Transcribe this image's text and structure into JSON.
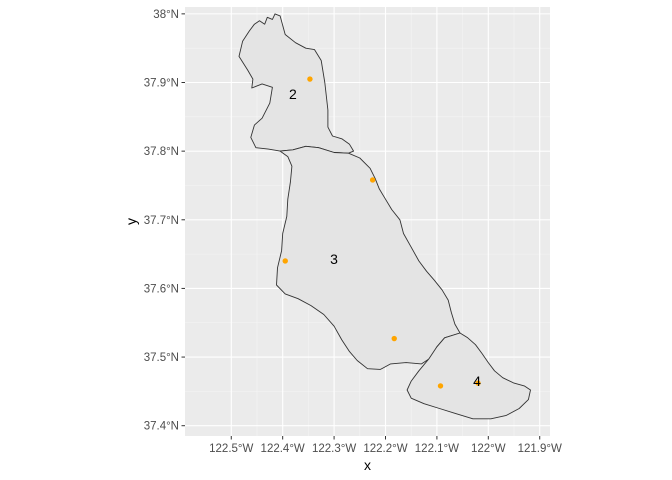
{
  "chart_data": {
    "type": "map",
    "xlabel": "x",
    "ylabel": "y",
    "xlim": [
      -122.59,
      -121.88
    ],
    "ylim": [
      37.385,
      38.01
    ],
    "x_ticks": [
      {
        "value": -122.5,
        "label": "122.5°W"
      },
      {
        "value": -122.4,
        "label": "122.4°W"
      },
      {
        "value": -122.3,
        "label": "122.3°W"
      },
      {
        "value": -122.2,
        "label": "122.2°W"
      },
      {
        "value": -122.1,
        "label": "122.1°W"
      },
      {
        "value": -122.0,
        "label": "122°W"
      },
      {
        "value": -121.9,
        "label": "121.9°W"
      }
    ],
    "y_ticks": [
      {
        "value": 37.4,
        "label": "37.4°N"
      },
      {
        "value": 37.5,
        "label": "37.5°N"
      },
      {
        "value": 37.6,
        "label": "37.6°N"
      },
      {
        "value": 37.7,
        "label": "37.7°N"
      },
      {
        "value": 37.8,
        "label": "37.8°N"
      },
      {
        "value": 37.9,
        "label": "37.9°N"
      },
      {
        "value": 38.0,
        "label": "38°N"
      }
    ],
    "grid": true,
    "region_fill": "#e4e4e4",
    "border_color": "#333333",
    "point_color": "#ffa500",
    "regions": [
      {
        "label": "2",
        "label_at": [
          -122.38,
          37.883
        ],
        "boundary": [
          [
            -122.455,
            37.985
          ],
          [
            -122.445,
            37.99
          ],
          [
            -122.435,
            37.985
          ],
          [
            -122.43,
            37.995
          ],
          [
            -122.42,
            37.992
          ],
          [
            -122.415,
            38.0
          ],
          [
            -122.405,
            37.997
          ],
          [
            -122.395,
            37.97
          ],
          [
            -122.375,
            37.958
          ],
          [
            -122.355,
            37.95
          ],
          [
            -122.338,
            37.948
          ],
          [
            -122.325,
            37.932
          ],
          [
            -122.318,
            37.9
          ],
          [
            -122.312,
            37.86
          ],
          [
            -122.312,
            37.835
          ],
          [
            -122.303,
            37.822
          ],
          [
            -122.285,
            37.818
          ],
          [
            -122.27,
            37.81
          ],
          [
            -122.262,
            37.8
          ],
          [
            -122.272,
            37.797
          ],
          [
            -122.3,
            37.798
          ],
          [
            -122.33,
            37.805
          ],
          [
            -122.355,
            37.807
          ],
          [
            -122.38,
            37.802
          ],
          [
            -122.405,
            37.8
          ],
          [
            -122.428,
            37.803
          ],
          [
            -122.452,
            37.805
          ],
          [
            -122.462,
            37.82
          ],
          [
            -122.455,
            37.838
          ],
          [
            -122.44,
            37.848
          ],
          [
            -122.425,
            37.87
          ],
          [
            -122.42,
            37.893
          ],
          [
            -122.44,
            37.898
          ],
          [
            -122.46,
            37.892
          ],
          [
            -122.458,
            37.905
          ],
          [
            -122.468,
            37.918
          ],
          [
            -122.485,
            37.938
          ],
          [
            -122.478,
            37.96
          ],
          [
            -122.465,
            37.975
          ]
        ]
      },
      {
        "label": "3",
        "label_at": [
          -122.3,
          37.643
        ],
        "boundary": [
          [
            -122.405,
            37.8
          ],
          [
            -122.38,
            37.802
          ],
          [
            -122.355,
            37.807
          ],
          [
            -122.33,
            37.805
          ],
          [
            -122.3,
            37.798
          ],
          [
            -122.272,
            37.797
          ],
          [
            -122.25,
            37.79
          ],
          [
            -122.23,
            37.775
          ],
          [
            -122.22,
            37.76
          ],
          [
            -122.212,
            37.745
          ],
          [
            -122.2,
            37.73
          ],
          [
            -122.188,
            37.715
          ],
          [
            -122.172,
            37.7
          ],
          [
            -122.165,
            37.68
          ],
          [
            -122.15,
            37.66
          ],
          [
            -122.135,
            37.64
          ],
          [
            -122.12,
            37.625
          ],
          [
            -122.105,
            37.612
          ],
          [
            -122.09,
            37.598
          ],
          [
            -122.078,
            37.583
          ],
          [
            -122.072,
            37.565
          ],
          [
            -122.065,
            37.548
          ],
          [
            -122.055,
            37.535
          ],
          [
            -122.085,
            37.528
          ],
          [
            -122.1,
            37.515
          ],
          [
            -122.11,
            37.5
          ],
          [
            -122.13,
            37.49
          ],
          [
            -122.16,
            37.492
          ],
          [
            -122.19,
            37.49
          ],
          [
            -122.21,
            37.482
          ],
          [
            -122.235,
            37.483
          ],
          [
            -122.255,
            37.495
          ],
          [
            -122.27,
            37.508
          ],
          [
            -122.285,
            37.525
          ],
          [
            -122.3,
            37.545
          ],
          [
            -122.32,
            37.562
          ],
          [
            -122.345,
            37.575
          ],
          [
            -122.37,
            37.585
          ],
          [
            -122.395,
            37.592
          ],
          [
            -122.412,
            37.605
          ],
          [
            -122.41,
            37.63
          ],
          [
            -122.402,
            37.655
          ],
          [
            -122.4,
            37.68
          ],
          [
            -122.392,
            37.705
          ],
          [
            -122.39,
            37.73
          ],
          [
            -122.385,
            37.755
          ],
          [
            -122.382,
            37.778
          ],
          [
            -122.39,
            37.792
          ]
        ]
      },
      {
        "label": "4",
        "label_at": [
          -122.022,
          37.465
        ],
        "boundary": [
          [
            -122.055,
            37.535
          ],
          [
            -122.04,
            37.528
          ],
          [
            -122.025,
            37.518
          ],
          [
            -122.012,
            37.505
          ],
          [
            -122.0,
            37.492
          ],
          [
            -121.988,
            37.48
          ],
          [
            -121.972,
            37.47
          ],
          [
            -121.95,
            37.462
          ],
          [
            -121.93,
            37.458
          ],
          [
            -121.918,
            37.452
          ],
          [
            -121.922,
            37.438
          ],
          [
            -121.94,
            37.425
          ],
          [
            -121.965,
            37.415
          ],
          [
            -121.995,
            37.41
          ],
          [
            -122.03,
            37.41
          ],
          [
            -122.065,
            37.418
          ],
          [
            -122.095,
            37.425
          ],
          [
            -122.125,
            37.432
          ],
          [
            -122.15,
            37.44
          ],
          [
            -122.158,
            37.452
          ],
          [
            -122.15,
            37.465
          ],
          [
            -122.135,
            37.48
          ],
          [
            -122.115,
            37.498
          ],
          [
            -122.1,
            37.515
          ],
          [
            -122.085,
            37.528
          ]
        ]
      }
    ],
    "points": [
      {
        "lon": -122.347,
        "lat": 37.905
      },
      {
        "lon": -122.225,
        "lat": 37.758
      },
      {
        "lon": -122.395,
        "lat": 37.64
      },
      {
        "lon": -122.183,
        "lat": 37.527
      },
      {
        "lon": -122.093,
        "lat": 37.458
      },
      {
        "lon": -122.02,
        "lat": 37.462
      }
    ]
  }
}
